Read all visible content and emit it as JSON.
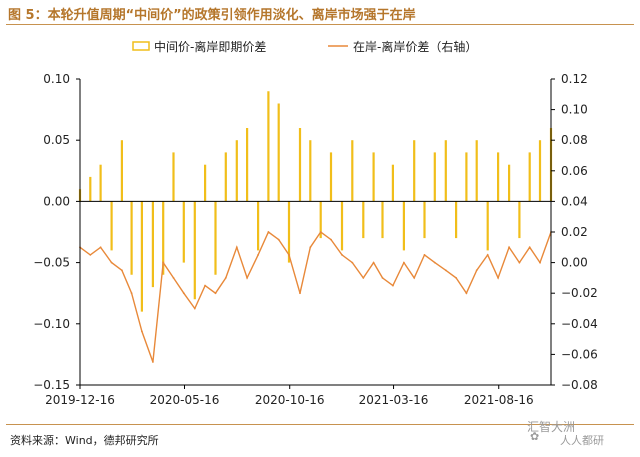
{
  "title": "图 5：本轮升值周期“中间价”的政策引领作用淡化、离岸市场强于在岸",
  "source": "资料来源：Wind，德邦研究所",
  "watermark": "汇智大洲",
  "watermark2": "人人都研",
  "colors": {
    "accent": "#b5762b",
    "series1": "#f1be1a",
    "series2": "#e8893a",
    "axis": "#000000"
  },
  "chart_data": {
    "type": "bar+line",
    "x_tick_labels": [
      "2019-12-16",
      "2020-05-16",
      "2020-10-16",
      "2021-03-16",
      "2021-08-16"
    ],
    "x_range": [
      "2019-12-16",
      "2021-10-31"
    ],
    "left_axis": {
      "range": [
        -0.15,
        0.1
      ],
      "tick_values": [
        0.1,
        0.05,
        0.0,
        -0.05,
        -0.1,
        -0.15
      ],
      "tick_labels": [
        "0.10",
        "0.05",
        "0.00",
        "−0.05",
        "−0.10",
        "−0.15"
      ]
    },
    "right_axis": {
      "range": [
        -0.08,
        0.12
      ],
      "tick_values": [
        0.12,
        0.1,
        0.08,
        0.06,
        0.04,
        0.02,
        0.0,
        -0.02,
        -0.04,
        -0.06,
        -0.08
      ],
      "tick_labels": [
        "0.12",
        "0.10",
        "0.08",
        "0.06",
        "0.04",
        "0.02",
        "0.00",
        "−0.02",
        "−0.04",
        "−0.06",
        "−0.08"
      ]
    },
    "legend_placement": "top",
    "grid": false,
    "series": [
      {
        "name": "中间价-离岸即期价差",
        "type": "bar",
        "axis": "left",
        "points": [
          [
            "2019-12-16",
            0.01
          ],
          [
            "2019-12-31",
            0.02
          ],
          [
            "2020-01-15",
            0.03
          ],
          [
            "2020-01-31",
            -0.04
          ],
          [
            "2020-02-15",
            0.05
          ],
          [
            "2020-02-29",
            -0.06
          ],
          [
            "2020-03-15",
            -0.09
          ],
          [
            "2020-03-31",
            -0.07
          ],
          [
            "2020-04-15",
            -0.06
          ],
          [
            "2020-04-30",
            0.04
          ],
          [
            "2020-05-15",
            -0.05
          ],
          [
            "2020-05-31",
            -0.08
          ],
          [
            "2020-06-15",
            0.03
          ],
          [
            "2020-06-30",
            -0.06
          ],
          [
            "2020-07-15",
            0.04
          ],
          [
            "2020-07-31",
            0.05
          ],
          [
            "2020-08-15",
            0.06
          ],
          [
            "2020-08-31",
            -0.04
          ],
          [
            "2020-09-15",
            0.09
          ],
          [
            "2020-09-30",
            0.08
          ],
          [
            "2020-10-15",
            -0.05
          ],
          [
            "2020-10-31",
            0.06
          ],
          [
            "2020-11-15",
            0.05
          ],
          [
            "2020-11-30",
            -0.03
          ],
          [
            "2020-12-15",
            0.04
          ],
          [
            "2020-12-31",
            -0.04
          ],
          [
            "2021-01-15",
            0.05
          ],
          [
            "2021-01-31",
            -0.03
          ],
          [
            "2021-02-15",
            0.04
          ],
          [
            "2021-02-28",
            -0.03
          ],
          [
            "2021-03-15",
            0.03
          ],
          [
            "2021-03-31",
            -0.04
          ],
          [
            "2021-04-15",
            0.05
          ],
          [
            "2021-04-30",
            -0.03
          ],
          [
            "2021-05-15",
            0.04
          ],
          [
            "2021-05-31",
            0.05
          ],
          [
            "2021-06-15",
            -0.03
          ],
          [
            "2021-06-30",
            0.04
          ],
          [
            "2021-07-15",
            0.05
          ],
          [
            "2021-07-31",
            -0.04
          ],
          [
            "2021-08-15",
            0.04
          ],
          [
            "2021-08-31",
            0.03
          ],
          [
            "2021-09-15",
            -0.03
          ],
          [
            "2021-09-30",
            0.04
          ],
          [
            "2021-10-15",
            0.05
          ],
          [
            "2021-10-31",
            0.06
          ]
        ]
      },
      {
        "name": "在岸-离岸价差（右轴）",
        "type": "line",
        "axis": "right",
        "points": [
          [
            "2019-12-16",
            0.01
          ],
          [
            "2019-12-31",
            0.005
          ],
          [
            "2020-01-15",
            0.01
          ],
          [
            "2020-01-31",
            0.0
          ],
          [
            "2020-02-15",
            -0.005
          ],
          [
            "2020-02-29",
            -0.02
          ],
          [
            "2020-03-15",
            -0.045
          ],
          [
            "2020-03-31",
            -0.065
          ],
          [
            "2020-04-15",
            0.0
          ],
          [
            "2020-04-30",
            -0.01
          ],
          [
            "2020-05-15",
            -0.02
          ],
          [
            "2020-05-31",
            -0.03
          ],
          [
            "2020-06-15",
            -0.015
          ],
          [
            "2020-06-30",
            -0.02
          ],
          [
            "2020-07-15",
            -0.01
          ],
          [
            "2020-07-31",
            0.01
          ],
          [
            "2020-08-15",
            -0.01
          ],
          [
            "2020-08-31",
            0.005
          ],
          [
            "2020-09-15",
            0.02
          ],
          [
            "2020-09-30",
            0.015
          ],
          [
            "2020-10-15",
            0.005
          ],
          [
            "2020-10-31",
            -0.02
          ],
          [
            "2020-11-15",
            0.01
          ],
          [
            "2020-11-30",
            0.02
          ],
          [
            "2020-12-15",
            0.015
          ],
          [
            "2020-12-31",
            0.005
          ],
          [
            "2021-01-15",
            0.0
          ],
          [
            "2021-01-31",
            -0.01
          ],
          [
            "2021-02-15",
            0.0
          ],
          [
            "2021-02-28",
            -0.01
          ],
          [
            "2021-03-15",
            -0.015
          ],
          [
            "2021-03-31",
            0.0
          ],
          [
            "2021-04-15",
            -0.01
          ],
          [
            "2021-04-30",
            0.005
          ],
          [
            "2021-05-15",
            0.0
          ],
          [
            "2021-05-31",
            -0.005
          ],
          [
            "2021-06-15",
            -0.01
          ],
          [
            "2021-06-30",
            -0.02
          ],
          [
            "2021-07-15",
            -0.005
          ],
          [
            "2021-07-31",
            0.005
          ],
          [
            "2021-08-15",
            -0.01
          ],
          [
            "2021-08-31",
            0.01
          ],
          [
            "2021-09-15",
            0.0
          ],
          [
            "2021-09-30",
            0.01
          ],
          [
            "2021-10-15",
            0.0
          ],
          [
            "2021-10-31",
            0.02
          ]
        ]
      }
    ]
  }
}
